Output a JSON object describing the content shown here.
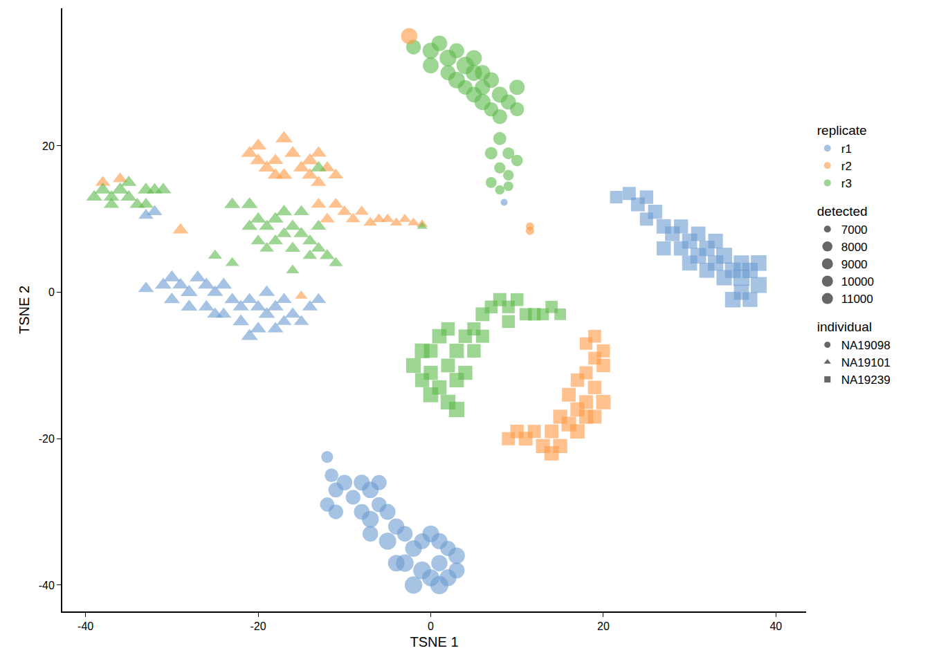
{
  "chart_data": {
    "type": "scatter",
    "xlabel": "TSNE 1",
    "ylabel": "TSNE 2",
    "xlim": [
      -42.7,
      43.5
    ],
    "ylim": [
      -43.6,
      38.8
    ],
    "xticks": [
      -40,
      -20,
      0,
      20,
      40
    ],
    "yticks": [
      -40,
      -20,
      0,
      20
    ],
    "grid": false,
    "replicate": {
      "title": "replicate",
      "levels": [
        {
          "name": "r1",
          "color": "#6a9bd1"
        },
        {
          "name": "r2",
          "color": "#ff9a45"
        },
        {
          "name": "r3",
          "color": "#5cb94a"
        }
      ]
    },
    "detected": {
      "title": "detected",
      "ticks": [
        7000,
        8000,
        9000,
        10000,
        11000
      ]
    },
    "individual": {
      "title": "individual",
      "levels": [
        {
          "name": "NA19098",
          "marker": "circle"
        },
        {
          "name": "NA19101",
          "marker": "triangle-up"
        },
        {
          "name": "NA19239",
          "marker": "square"
        }
      ]
    },
    "series": [
      {
        "replicate": "r3",
        "individual": "NA19098",
        "x": [
          -2,
          0,
          1,
          2,
          3,
          4,
          5,
          6,
          3,
          4,
          5,
          6,
          7,
          8,
          9,
          10,
          10,
          8,
          7,
          5,
          2,
          0,
          6,
          8,
          9,
          7,
          8,
          9,
          7,
          10,
          8,
          9
        ],
        "y": [
          33.5,
          33,
          34,
          32,
          33,
          31,
          32,
          30,
          29,
          28,
          27,
          26,
          25,
          27,
          26,
          28,
          25,
          24,
          29,
          30,
          30,
          31,
          28,
          21,
          19,
          19,
          17,
          16,
          15,
          18,
          14,
          14.5
        ],
        "detected": [
          9500,
          10000,
          9800,
          10200,
          9600,
          10400,
          9900,
          9700,
          10100,
          9500,
          9800,
          10000,
          9400,
          9900,
          9600,
          9700,
          9300,
          9500,
          9800,
          10000,
          9600,
          9900,
          9700,
          9000,
          8600,
          8800,
          8400,
          8200,
          8300,
          8500,
          7800,
          7900
        ]
      },
      {
        "replicate": "r2",
        "individual": "NA19098",
        "x": [
          -2.5,
          11.5,
          11.5
        ],
        "y": [
          35,
          9,
          8.4
        ],
        "detected": [
          10000,
          7400,
          7500
        ]
      },
      {
        "replicate": "r1",
        "individual": "NA19098",
        "x": [
          8.5,
          -12,
          -11.5,
          -11,
          -12,
          -10,
          -9,
          -8,
          -7,
          -6,
          -8,
          -7,
          -6,
          -5,
          -4,
          -5,
          -3,
          -2,
          -3,
          -1,
          0,
          1,
          2,
          3,
          -1,
          0,
          1,
          2,
          3,
          -2,
          1,
          -7,
          -11,
          -4
        ],
        "y": [
          12.3,
          -22.5,
          -25,
          -27,
          -29,
          -26,
          -28,
          -26,
          -27,
          -26,
          -30,
          -31,
          -29,
          -30,
          -32,
          -34,
          -33,
          -35,
          -37,
          -34,
          -33,
          -34,
          -35,
          -36,
          -38,
          -39,
          -40,
          -39,
          -38,
          -40,
          -37,
          -33,
          -30,
          -37
        ],
        "detected": [
          7000,
          8600,
          9200,
          9600,
          9400,
          9800,
          9500,
          9900,
          10100,
          9700,
          9800,
          10200,
          9600,
          9900,
          10000,
          10300,
          9800,
          10100,
          10400,
          9900,
          10200,
          10000,
          9700,
          10100,
          10500,
          10300,
          10600,
          10200,
          9900,
          10400,
          10000,
          9800,
          9500,
          10100
        ]
      },
      {
        "replicate": "r1",
        "individual": "NA19239",
        "x": [
          21.5,
          23,
          24,
          25,
          26,
          25,
          27,
          28,
          29,
          30,
          31,
          32,
          33,
          31,
          30,
          33,
          34,
          35,
          36,
          37,
          38,
          36,
          35,
          37,
          34,
          29,
          32,
          27,
          38,
          36
        ],
        "y": [
          13,
          13.5,
          12,
          13,
          11,
          10,
          9,
          8,
          9,
          7,
          8,
          6,
          7,
          5,
          4,
          4,
          5,
          3,
          2,
          3,
          1,
          0,
          -1,
          -1,
          2,
          6,
          3,
          6,
          4,
          4
        ],
        "detected": [
          8800,
          9000,
          9200,
          9100,
          9300,
          9000,
          9400,
          9500,
          9300,
          9600,
          9400,
          9700,
          9500,
          9800,
          9600,
          9700,
          9900,
          9800,
          10000,
          9700,
          9900,
          9600,
          9800,
          9500,
          9700,
          9400,
          9600,
          9300,
          9800,
          9700
        ]
      },
      {
        "replicate": "r3",
        "individual": "NA19239",
        "x": [
          0,
          1,
          2,
          -2,
          -1,
          0,
          1,
          2,
          3,
          0,
          2,
          3,
          4,
          5,
          6,
          7,
          8,
          9,
          10,
          11,
          12,
          13,
          14,
          15,
          4,
          3,
          5,
          -1,
          6,
          9
        ],
        "y": [
          -8,
          -6,
          -5,
          -10,
          -12,
          -14,
          -13,
          -15,
          -16,
          -11,
          -10,
          -8,
          -6,
          -5,
          -3,
          -2,
          -1,
          -2,
          -1,
          -3,
          -3,
          -3,
          -2,
          -3,
          -11,
          -12,
          -8,
          -8,
          -6,
          -4
        ],
        "detected": [
          9200,
          9400,
          9100,
          9500,
          9300,
          9600,
          9400,
          9500,
          9700,
          9300,
          9200,
          9400,
          9100,
          9000,
          9200,
          8900,
          9000,
          8800,
          8900,
          8700,
          8800,
          8600,
          8700,
          8500,
          9300,
          9400,
          9100,
          9500,
          9000,
          8900
        ]
      },
      {
        "replicate": "r2",
        "individual": "NA19239",
        "x": [
          9,
          10,
          11,
          12,
          13,
          14,
          14,
          15,
          16,
          17,
          17,
          18,
          19,
          18,
          19,
          20,
          18,
          19,
          20,
          16,
          18,
          20,
          15,
          17,
          19
        ],
        "y": [
          -20,
          -19,
          -20,
          -19,
          -21,
          -22,
          -19,
          -17,
          -18,
          -19,
          -16,
          -15,
          -13,
          -11,
          -9,
          -8,
          -7,
          -6,
          -10,
          -14,
          -17,
          -15,
          -21,
          -12,
          -17
        ],
        "detected": [
          9000,
          9100,
          9200,
          9000,
          9300,
          9400,
          9200,
          9300,
          9500,
          9400,
          9300,
          9200,
          9100,
          9000,
          8900,
          9000,
          8800,
          8900,
          9100,
          9200,
          9300,
          9400,
          9300,
          9100,
          9200
        ]
      },
      {
        "replicate": "r2",
        "individual": "NA19101",
        "x": [
          -21,
          -20,
          -19,
          -18,
          -17,
          -16,
          -15,
          -14,
          -13,
          -12,
          -11,
          -14,
          -17,
          -20,
          -18,
          -13,
          -11,
          -10,
          -9,
          -8,
          -7,
          -6,
          -5,
          -4,
          -3,
          -2,
          -1,
          -12,
          -13,
          -38,
          -36,
          -29,
          -15
        ],
        "y": [
          19,
          18,
          17,
          18,
          21,
          19,
          17,
          18,
          19,
          17,
          16,
          16,
          16,
          20,
          16,
          15,
          12,
          11,
          10,
          11,
          9.5,
          10,
          10,
          9.5,
          10,
          9.5,
          9.3,
          10,
          12,
          15,
          15.5,
          8.5,
          -0.5
        ],
        "detected": [
          9400,
          9300,
          9500,
          9200,
          9600,
          9400,
          9300,
          9500,
          9200,
          9100,
          9000,
          9300,
          9400,
          9500,
          9200,
          9100,
          9000,
          8900,
          8800,
          8700,
          8600,
          8500,
          8400,
          8300,
          8200,
          8100,
          8000,
          8900,
          9000,
          9000,
          8900,
          9200,
          8300
        ]
      },
      {
        "replicate": "r3",
        "individual": "NA19101",
        "x": [
          -39,
          -38,
          -37,
          -36,
          -35,
          -34,
          -33,
          -32,
          -31,
          -37,
          -35,
          -33,
          -23,
          -21,
          -20,
          -19,
          -18,
          -17,
          -16,
          -15,
          -14,
          -13,
          -12,
          -14,
          -16,
          -18,
          -21,
          -20,
          -17,
          -15,
          -13,
          -19,
          -25,
          -23,
          -16,
          -11,
          -13,
          -1
        ],
        "y": [
          13,
          14,
          13,
          14,
          13,
          12,
          14,
          14,
          14,
          12,
          15,
          12,
          12,
          12,
          10,
          9,
          10,
          8,
          9,
          8,
          7,
          6,
          5,
          5,
          6,
          7,
          9,
          7,
          11,
          11,
          9,
          6,
          5,
          4,
          3,
          4,
          17,
          9
        ],
        "detected": [
          9300,
          9400,
          9200,
          9500,
          9300,
          9100,
          9400,
          9200,
          9300,
          9100,
          9200,
          9000,
          9300,
          9400,
          9200,
          9100,
          9300,
          9000,
          9200,
          9100,
          9000,
          8900,
          9000,
          8800,
          9100,
          9000,
          9200,
          8900,
          9300,
          9100,
          9000,
          8800,
          8700,
          8600,
          8500,
          8700,
          9200,
          7800
        ]
      },
      {
        "replicate": "r1",
        "individual": "NA19101",
        "x": [
          -33,
          -31,
          -30,
          -29,
          -28,
          -27,
          -26,
          -25,
          -24,
          -23,
          -22,
          -21,
          -20,
          -19,
          -18,
          -17,
          -16,
          -15,
          -14,
          -13,
          -19,
          -22,
          -21,
          -20,
          -18,
          -28,
          -30,
          -26,
          -24,
          -33,
          -32,
          -17,
          -25
        ],
        "y": [
          0.5,
          1,
          2,
          1,
          0,
          2,
          1,
          0,
          1,
          -1,
          -2,
          -1,
          -2,
          -3,
          -2,
          -1,
          -3,
          -4,
          -2,
          -1,
          0,
          -4,
          -6,
          -5,
          -5,
          -2,
          -1,
          -2,
          -3,
          10.5,
          11,
          -4,
          -3
        ],
        "detected": [
          9200,
          9400,
          9500,
          9300,
          9600,
          9400,
          9500,
          9300,
          9400,
          9200,
          9300,
          9100,
          9200,
          9400,
          9300,
          9100,
          9200,
          9000,
          9100,
          9000,
          9300,
          9400,
          9500,
          9300,
          9200,
          9400,
          9300,
          9200,
          9100,
          9000,
          9100,
          9000,
          9200
        ]
      }
    ]
  }
}
